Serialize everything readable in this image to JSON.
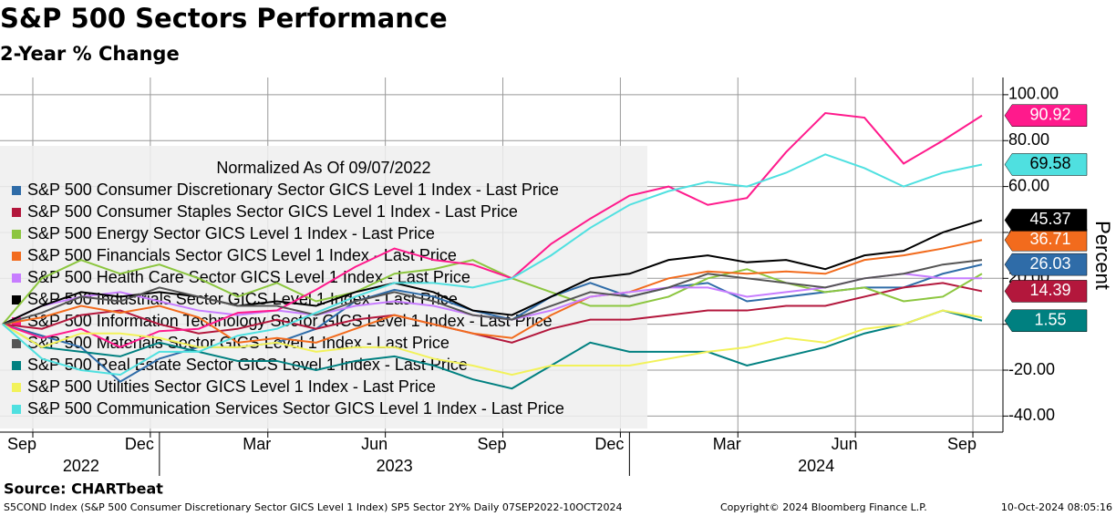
{
  "chart_data": {
    "type": "line",
    "title": "S&P 500 Sectors Performance",
    "subtitle": "2-Year % Change",
    "legend_title": "Normalized As Of 09/07/2022",
    "y_label": "Percent",
    "source": "Source: CHARTbeat",
    "description": "S5COND Index (S&P 500 Consumer Discretionary Sector GICS Level 1 Index) SP5 Sector 2Y%  Daily 07SEP2022-10OCT2024",
    "copyright": "Copyright© 2024 Bloomberg Finance L.P.",
    "timestamp": "10-Oct-2024 08:05:16",
    "grid": true,
    "x": [
      "2022-09",
      "2022-10",
      "2022-11",
      "2022-12",
      "2023-01",
      "2023-02",
      "2023-03",
      "2023-04",
      "2023-05",
      "2023-06",
      "2023-07",
      "2023-08",
      "2023-09",
      "2023-10",
      "2023-11",
      "2023-12",
      "2024-01",
      "2024-02",
      "2024-03",
      "2024-04",
      "2024-05",
      "2024-06",
      "2024-07",
      "2024-08",
      "2024-09",
      "2024-10"
    ],
    "xticks": [
      {
        "value": "2022-09",
        "label": "Sep"
      },
      {
        "value": "2022-12",
        "label": "Dec"
      },
      {
        "value": "2023-03",
        "label": "Mar"
      },
      {
        "value": "2023-06",
        "label": "Jun"
      },
      {
        "value": "2023-09",
        "label": "Sep"
      },
      {
        "value": "2023-12",
        "label": "Dec"
      },
      {
        "value": "2024-03",
        "label": "Mar"
      },
      {
        "value": "2024-06",
        "label": "Jun"
      },
      {
        "value": "2024-09",
        "label": "Sep"
      }
    ],
    "years": [
      {
        "value": "2022",
        "start": "2022-09",
        "end": "2022-12"
      },
      {
        "value": "2023",
        "start": "2023-01",
        "end": "2023-12"
      },
      {
        "value": "2024",
        "start": "2024-01",
        "end": "2024-10"
      }
    ],
    "ylim": [
      -47,
      107.5
    ],
    "yticks": [
      {
        "value": 100,
        "label": "100.00"
      },
      {
        "value": 80,
        "label": "80.00"
      },
      {
        "value": 60,
        "label": "60.00"
      },
      {
        "value": 40,
        "label": "40.00"
      },
      {
        "value": 20,
        "label": "20.00"
      },
      {
        "value": 0,
        "label": "0.00"
      },
      {
        "value": -20,
        "label": "-20.00"
      },
      {
        "value": -40,
        "label": "-40.00"
      }
    ],
    "series": [
      {
        "name": "S&P 500 Consumer Discretionary Sector GICS Level 1 Index - Last Price",
        "color": "#2f6ca8",
        "show_last": true,
        "values": [
          0,
          -5,
          -10,
          -25,
          -15,
          -10,
          -10,
          -8,
          -2,
          10,
          15,
          12,
          6,
          2,
          12,
          18,
          12,
          16,
          18,
          10,
          12,
          14,
          16,
          16,
          22,
          26.03
        ]
      },
      {
        "name": "S&P 500 Consumer Staples Sector GICS Level 1 Index - Last Price",
        "color": "#b3173c",
        "show_last": true,
        "values": [
          0,
          -2,
          4,
          6,
          0,
          -4,
          -2,
          2,
          -2,
          2,
          4,
          0,
          -4,
          -8,
          -2,
          2,
          2,
          4,
          6,
          6,
          8,
          8,
          12,
          16,
          18,
          14.39
        ]
      },
      {
        "name": "S&P 500 Energy Sector GICS Level 1 Index - Last Price",
        "color": "#8cc63f",
        "show_last": false,
        "values": [
          0,
          20,
          28,
          22,
          26,
          20,
          12,
          18,
          10,
          14,
          22,
          24,
          28,
          20,
          14,
          8,
          8,
          12,
          20,
          24,
          18,
          14,
          16,
          10,
          12,
          22
        ]
      },
      {
        "name": "S&P 500 Financials Sector GICS Level 1 Index - Last Price",
        "color": "#f26b1d",
        "show_last": true,
        "values": [
          0,
          3,
          8,
          5,
          8,
          3,
          -8,
          -6,
          -8,
          -2,
          4,
          0,
          -4,
          -6,
          4,
          12,
          14,
          20,
          23,
          22,
          23,
          22,
          28,
          30,
          33,
          36.71
        ]
      },
      {
        "name": "S&P 500 Health Care Sector GICS Level 1 Index - Last Price",
        "color": "#c77dff",
        "show_last": false,
        "values": [
          0,
          8,
          12,
          14,
          10,
          6,
          4,
          6,
          4,
          8,
          10,
          8,
          4,
          2,
          6,
          12,
          14,
          16,
          16,
          12,
          14,
          16,
          20,
          22,
          20,
          20
        ]
      },
      {
        "name": "S&P 500 Industrials Sector GICS Level 1 Index - Last Price",
        "color": "#000000",
        "show_last": true,
        "values": [
          0,
          8,
          14,
          12,
          14,
          12,
          8,
          10,
          8,
          14,
          18,
          14,
          6,
          4,
          12,
          20,
          22,
          28,
          30,
          27,
          28,
          24,
          30,
          32,
          40,
          45.37
        ]
      },
      {
        "name": "S&P 500 Information Technology Sector GICS Level 1 Index - Last Price",
        "color": "#ff1a8c",
        "show_last": true,
        "values": [
          0,
          -6,
          -2,
          -10,
          -3,
          -2,
          5,
          6,
          15,
          25,
          33,
          28,
          26,
          20,
          35,
          46,
          56,
          60,
          52,
          55,
          75,
          92,
          90,
          70,
          80,
          90.92
        ]
      },
      {
        "name": "S&P 500 Materials Sector GICS Level 1 Index - Last Price",
        "color": "#555555",
        "show_last": false,
        "values": [
          0,
          5,
          12,
          10,
          16,
          12,
          8,
          8,
          4,
          10,
          14,
          10,
          4,
          2,
          8,
          14,
          12,
          16,
          22,
          20,
          18,
          16,
          20,
          22,
          26,
          28
        ]
      },
      {
        "name": "S&P 500 Real Estate Sector GICS Level 1 Index - Last Price",
        "color": "#008080",
        "show_last": true,
        "values": [
          0,
          -10,
          -12,
          -14,
          -8,
          -12,
          -16,
          -16,
          -20,
          -16,
          -14,
          -18,
          -24,
          -28,
          -18,
          -8,
          -12,
          -12,
          -12,
          -18,
          -14,
          -10,
          -4,
          0,
          6,
          1.55
        ]
      },
      {
        "name": "S&P 500 Utilities Sector GICS Level 1 Index - Last Price",
        "color": "#f2f25a",
        "show_last": false,
        "values": [
          0,
          -10,
          -4,
          -4,
          -6,
          -10,
          -10,
          -8,
          -12,
          -10,
          -10,
          -15,
          -18,
          -22,
          -18,
          -18,
          -18,
          -15,
          -12,
          -10,
          -6,
          -8,
          -2,
          0,
          6,
          3
        ]
      },
      {
        "name": "S&P 500 Communication Services Sector GICS Level 1 Index - Last Price",
        "color": "#4fe0e0",
        "show_last": true,
        "values": [
          0,
          -15,
          -20,
          -22,
          -12,
          -12,
          -5,
          -2,
          5,
          12,
          18,
          18,
          16,
          20,
          30,
          42,
          52,
          58,
          62,
          60,
          66,
          74,
          68,
          60,
          66,
          69.58
        ]
      }
    ]
  }
}
